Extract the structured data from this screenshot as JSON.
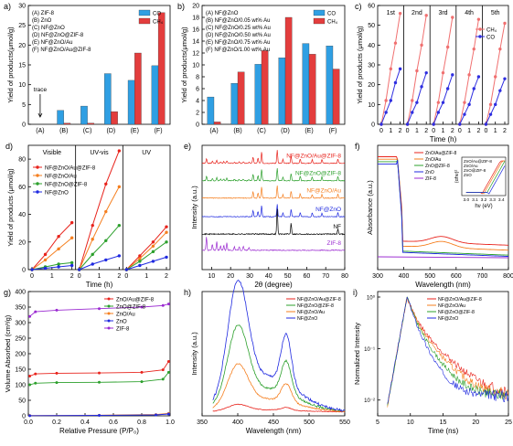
{
  "figure": {
    "panel_letters": [
      "a)",
      "b)",
      "c)",
      "d)",
      "e)",
      "f)",
      "g)",
      "h)",
      "i)"
    ]
  },
  "colors": {
    "co_bar": "#2f9fe3",
    "ch4_bar": "#e33d3d",
    "ch4_line": "#f07070",
    "co_line": "#2e2ee0",
    "series_red": "#e8231c",
    "series_orange": "#f57f1f",
    "series_green": "#2ca02c",
    "series_blue": "#1f2ae0",
    "black": "#000000",
    "purple": "#9b2bd1"
  },
  "chart_data": [
    {
      "panel": "a)",
      "type": "bar",
      "legend_text": [
        "(A) ZIF-8",
        "(B) ZnO",
        "(C) NF@ZnO",
        "(D) NF@ZnO@ZIF-8",
        "(E) NF@ZnO/Au",
        "(F) NF@ZnO/Au@ZIF-8"
      ],
      "annotation": "trace",
      "categories": [
        "(A)",
        "(B)",
        "(C)",
        "(D)",
        "(E)",
        "(F)"
      ],
      "series": [
        {
          "name": "CO",
          "values": [
            0,
            3.5,
            4.6,
            12.8,
            11.1,
            14.8
          ]
        },
        {
          "name": "CH₄",
          "values": [
            0,
            0.3,
            0.3,
            3.2,
            18.0,
            28.2
          ]
        }
      ],
      "ylabel": "Yield of products(μmol/g)",
      "ylim": [
        0,
        30
      ],
      "yticks": [
        "0",
        "5",
        "10",
        "15",
        "20",
        "25",
        "30"
      ],
      "legend": "top-right"
    },
    {
      "panel": "b)",
      "type": "bar",
      "legend_text": [
        "(A) NF@ZnO",
        "(B) NF@ZnO/0.05 wt% Au",
        "(C) NF@ZnO/0.25 wt% Au",
        "(D) NF@ZnO/0.50 wt% Au",
        "(E) NF@ZnO/0.75 wt% Au",
        "(F) NF@ZnO/1.00 wt% Au"
      ],
      "categories": [
        "(A)",
        "(B)",
        "(C)",
        "(D)",
        "(E)",
        "(F)"
      ],
      "series": [
        {
          "name": "CO",
          "values": [
            4.6,
            6.9,
            10.1,
            11.2,
            13.6,
            13.2
          ]
        },
        {
          "name": "CH₄",
          "values": [
            0.4,
            8.8,
            12.4,
            18.0,
            11.8,
            9.3
          ]
        }
      ],
      "ylabel": "Yield of products(μmol/g)",
      "ylim": [
        0,
        20
      ],
      "yticks": [
        "0",
        "2",
        "4",
        "6",
        "8",
        "10",
        "12",
        "14",
        "16",
        "18",
        "20"
      ],
      "legend": "top-right"
    },
    {
      "panel": "c)",
      "type": "line",
      "cycles": [
        "1st",
        "2nd",
        "3rd",
        "4th",
        "5th"
      ],
      "cycle_ticks": [
        "0",
        "1",
        "2"
      ],
      "series": [
        {
          "name": "CH₄",
          "values": [
            [
              0,
              12,
              28,
              41,
              56
            ],
            [
              0,
              12,
              27,
              40,
              55
            ],
            [
              0,
              11,
              26,
              39,
              54
            ],
            [
              0,
              11,
              25,
              38,
              53
            ],
            [
              0,
              10,
              24,
              38,
              51
            ]
          ]
        },
        {
          "name": "CO",
          "values": [
            [
              0,
              6,
              12,
              21,
              28
            ],
            [
              0,
              6,
              11,
              19,
              26
            ],
            [
              0,
              6,
              11,
              18,
              25
            ],
            [
              0,
              5,
              10,
              18,
              24
            ],
            [
              0,
              5,
              10,
              17,
              23
            ]
          ]
        }
      ],
      "xlabel": "Time (h)",
      "ylabel": "Yield of products (μmol/g)",
      "ylim": [
        0,
        60
      ],
      "yticks": [
        "0",
        "10",
        "20",
        "30",
        "40",
        "50",
        "60"
      ],
      "legend": "top-right"
    },
    {
      "panel": "d)",
      "type": "line",
      "sections": [
        "Visible",
        "UV-vis",
        "UV"
      ],
      "section_ticks": [
        "0",
        "1",
        "2"
      ],
      "series": [
        {
          "name": "NF@ZnO/Au@ZIF-8",
          "values": [
            [
              0,
              11,
              24,
              34
            ],
            [
              0,
              32,
              62,
              86
            ],
            [
              0,
              10,
              20,
              31
            ]
          ]
        },
        {
          "name": "NF@ZnO/Au",
          "values": [
            [
              0,
              7,
              15,
              23
            ],
            [
              0,
              22,
              42,
              60
            ],
            [
              0,
              8,
              17,
              27
            ]
          ]
        },
        {
          "name": "NF@ZnO@ZIF-8",
          "values": [
            [
              0,
              2,
              4,
              5
            ],
            [
              0,
              11,
              21,
              32
            ],
            [
              0,
              6,
              13,
              20
            ]
          ]
        },
        {
          "name": "NF@ZnO",
          "values": [
            [
              0,
              1,
              2,
              3
            ],
            [
              0,
              4,
              7,
              10
            ],
            [
              0,
              3,
              6,
              9
            ]
          ]
        }
      ],
      "xlabel": "Time (h)",
      "ylabel": "Yield of products (μmol/g)",
      "ylim": [
        0,
        90
      ],
      "yticks": [
        "0",
        "20",
        "40",
        "60",
        "80"
      ],
      "legend": "top-left"
    },
    {
      "panel": "e)",
      "type": "line",
      "labels": [
        "NF@ZnO/Au@ZIF-8",
        "NF@ZnO@ZIF-8",
        "NF@ZnO/Au",
        "NF@ZnO",
        "NF",
        "ZIF-8"
      ],
      "offsets": [
        0.9,
        0.76,
        0.62,
        0.47,
        0.33,
        0.2,
        0.04
      ],
      "xlabel": "2θ (degree)",
      "ylabel": "Intensity (a.u.)",
      "xlim": [
        5,
        80
      ],
      "xticks": [
        "10",
        "20",
        "30",
        "40",
        "50",
        "60",
        "70",
        "80"
      ]
    },
    {
      "panel": "f)",
      "type": "line",
      "legend_text": [
        "ZnO/Au@ZIF-8",
        "ZnO/Au",
        "ZnO@ZIF-8",
        "ZnO",
        "ZIF-8"
      ],
      "inset_legend_text": [
        "ZnO/Au@ZIF-8",
        "ZnO/Au",
        "ZnO@ZIF-8",
        "ZnO"
      ],
      "inset_xlabel": "hν (eV)",
      "inset_ylabel": "(αhν)²",
      "inset_xticks": [
        "3.0",
        "3.1",
        "3.2",
        "3.3",
        "3.4"
      ],
      "xlabel": "Wavelength (nm)",
      "ylabel": "Absorbance (a.u.)",
      "xlim": [
        300,
        800
      ],
      "xticks": [
        "300",
        "400",
        "500",
        "600",
        "700",
        "800"
      ]
    },
    {
      "panel": "g)",
      "type": "line",
      "series": [
        {
          "name": "ZnO/Au@ZIF-8",
          "values": [
            [
              0.01,
              128
            ],
            [
              0.05,
              135
            ],
            [
              0.2,
              137
            ],
            [
              0.5,
              138
            ],
            [
              0.8,
              140
            ],
            [
              0.95,
              148
            ],
            [
              0.99,
              175
            ]
          ]
        },
        {
          "name": "ZnO@ZIF-8",
          "values": [
            [
              0.01,
              100
            ],
            [
              0.05,
              105
            ],
            [
              0.2,
              107
            ],
            [
              0.5,
              108
            ],
            [
              0.8,
              110
            ],
            [
              0.95,
              118
            ],
            [
              0.99,
              140
            ]
          ]
        },
        {
          "name": "ZnO/Au",
          "values": [
            [
              0.01,
              1
            ],
            [
              0.5,
              2
            ],
            [
              0.9,
              4
            ],
            [
              0.99,
              8
            ]
          ]
        },
        {
          "name": "ZnO",
          "values": [
            [
              0.01,
              0.5
            ],
            [
              0.5,
              1.5
            ],
            [
              0.9,
              3
            ],
            [
              0.99,
              6
            ]
          ]
        },
        {
          "name": "ZIF-8",
          "values": [
            [
              0.01,
              320
            ],
            [
              0.05,
              335
            ],
            [
              0.2,
              340
            ],
            [
              0.5,
              345
            ],
            [
              0.8,
              350
            ],
            [
              0.95,
              355
            ],
            [
              0.99,
              360
            ]
          ]
        }
      ],
      "xlabel": "Relative Pressure (P/P₀)",
      "ylabel": "Volume Absorbed (cm³/g)",
      "xlim": [
        0,
        1
      ],
      "ylim": [
        0,
        400
      ],
      "xticks": [
        "0.0",
        "0.2",
        "0.4",
        "0.6",
        "0.8",
        "1.0"
      ],
      "yticks": [
        "0",
        "50",
        "100",
        "150",
        "200",
        "250",
        "300",
        "350",
        "400"
      ],
      "legend": "top-right"
    },
    {
      "panel": "h)",
      "type": "line",
      "legend_text": [
        "NF@ZnO/Au@ZIF-8",
        "NF@ZnO@ZIF-8",
        "NF@ZnO/Au",
        "NF@ZnO"
      ],
      "xlabel": "Wavelength (nm)",
      "ylabel": "Intensity (a.u.)",
      "xlim": [
        350,
        550
      ],
      "xticks": [
        "350",
        "400",
        "450",
        "500",
        "550"
      ],
      "legend": "top-right"
    },
    {
      "panel": "i)",
      "type": "line",
      "legend_text": [
        "NF@ZnO/Au@ZIF-8",
        "NF@ZnO/Au",
        "NF@ZnO@ZIF-8",
        "NF@ZnO"
      ],
      "xlabel": "Time (ns)",
      "ylabel": "Normalized Intensity",
      "xlim": [
        5,
        25
      ],
      "xticks": [
        "5",
        "10",
        "15",
        "20",
        "25"
      ],
      "yticks": [
        "10⁰",
        "10⁻¹",
        "10⁻²"
      ],
      "legend": "top-right"
    }
  ]
}
